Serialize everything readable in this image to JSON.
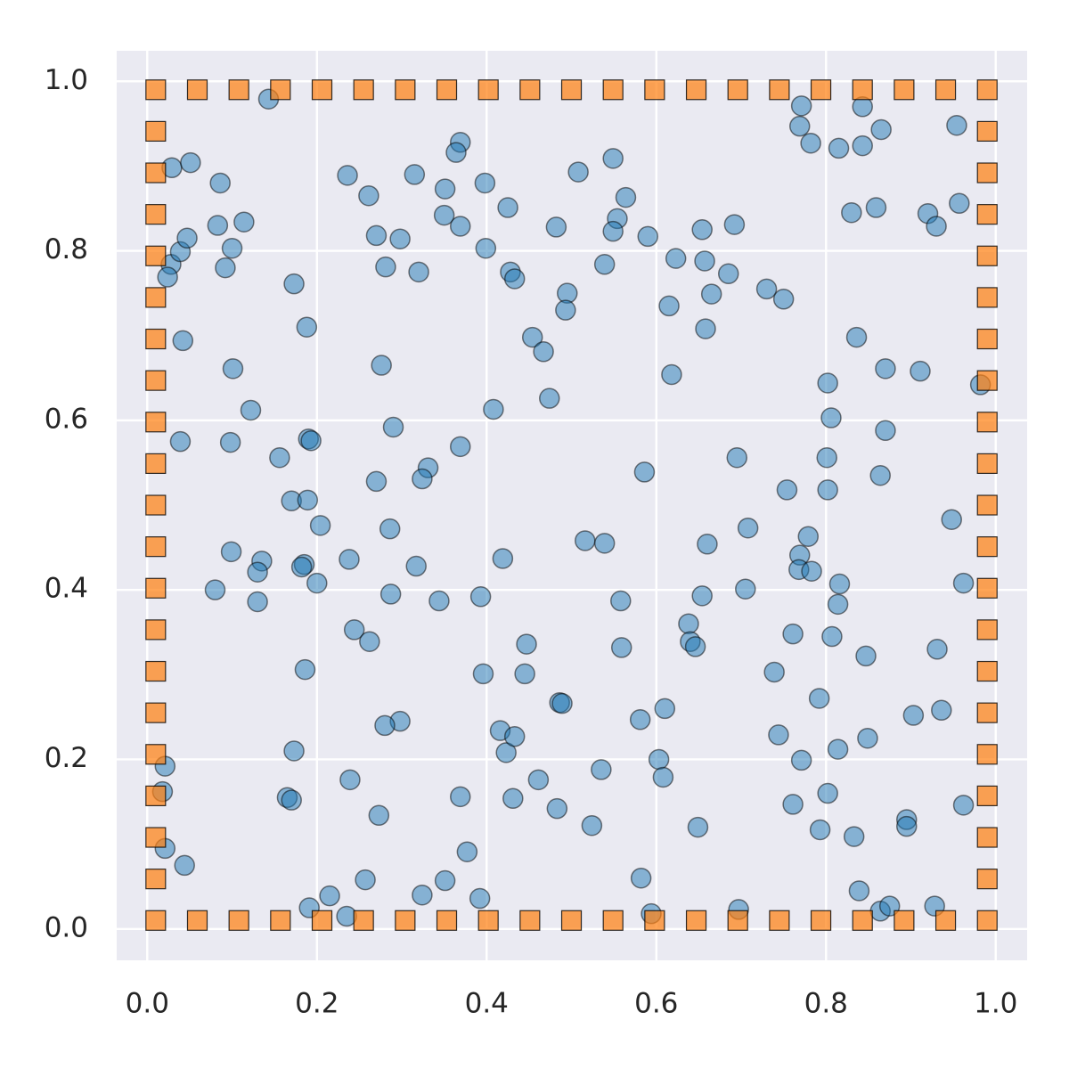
{
  "chart_data": {
    "type": "scatter",
    "xlim": [
      -0.036,
      1.037
    ],
    "ylim": [
      -0.037,
      1.036
    ],
    "xticks": [
      {
        "value": 0,
        "label": "0.0"
      },
      0.2,
      0.4,
      0.6,
      0.8,
      {
        "value": 1,
        "label": "1.0"
      }
    ],
    "yticks": [
      {
        "value": 0,
        "label": "0.0"
      },
      0.2,
      0.4,
      0.6,
      0.8,
      {
        "value": 1,
        "label": "1.0"
      }
    ],
    "grid": true,
    "series": [
      {
        "color": "#1f77b4",
        "marker": "circle",
        "x": [
          0.143,
          0.029,
          0.051,
          0.086,
          0.028,
          0.024,
          0.039,
          0.047,
          0.083,
          0.114,
          0.1,
          0.092,
          0.173,
          0.042,
          0.188,
          0.101,
          0.122,
          0.039,
          0.098,
          0.19,
          0.193,
          0.156,
          0.17,
          0.189,
          0.204,
          0.099,
          0.135,
          0.13,
          0.08,
          0.13,
          0.185,
          0.182,
          0.2,
          0.186,
          0.173,
          0.165,
          0.17,
          0.021,
          0.018,
          0.021,
          0.044,
          0.236,
          0.261,
          0.27,
          0.298,
          0.281,
          0.315,
          0.32,
          0.351,
          0.35,
          0.369,
          0.364,
          0.369,
          0.398,
          0.399,
          0.425,
          0.428,
          0.433,
          0.276,
          0.29,
          0.331,
          0.324,
          0.369,
          0.408,
          0.27,
          0.286,
          0.317,
          0.287,
          0.344,
          0.393,
          0.238,
          0.244,
          0.262,
          0.396,
          0.298,
          0.28,
          0.239,
          0.273,
          0.257,
          0.215,
          0.191,
          0.235,
          0.324,
          0.351,
          0.369,
          0.377,
          0.392,
          0.419,
          0.416,
          0.423,
          0.433,
          0.431,
          0.447,
          0.445,
          0.454,
          0.467,
          0.474,
          0.482,
          0.495,
          0.493,
          0.508,
          0.549,
          0.564,
          0.554,
          0.549,
          0.539,
          0.516,
          0.539,
          0.558,
          0.559,
          0.461,
          0.483,
          0.486,
          0.489,
          0.535,
          0.524,
          0.586,
          0.59,
          0.581,
          0.582,
          0.594,
          0.61,
          0.603,
          0.608,
          0.615,
          0.618,
          0.623,
          0.654,
          0.657,
          0.665,
          0.658,
          0.692,
          0.685,
          0.695,
          0.708,
          0.705,
          0.66,
          0.654,
          0.638,
          0.64,
          0.646,
          0.649,
          0.697,
          0.73,
          0.75,
          0.754,
          0.739,
          0.744,
          0.761,
          0.761,
          0.771,
          0.771,
          0.769,
          0.782,
          0.815,
          0.843,
          0.843,
          0.865,
          0.83,
          0.859,
          0.836,
          0.87,
          0.802,
          0.806,
          0.801,
          0.802,
          0.87,
          0.864,
          0.779,
          0.769,
          0.768,
          0.783,
          0.816,
          0.814,
          0.807,
          0.847,
          0.792,
          0.814,
          0.802,
          0.793,
          0.833,
          0.849,
          0.839,
          0.864,
          0.875,
          0.911,
          0.92,
          0.93,
          0.954,
          0.957,
          0.982,
          0.948,
          0.962,
          0.931,
          0.936,
          0.903,
          0.895,
          0.895,
          0.962,
          0.928
        ],
        "y": [
          0.979,
          0.898,
          0.904,
          0.88,
          0.784,
          0.769,
          0.799,
          0.815,
          0.83,
          0.834,
          0.803,
          0.78,
          0.761,
          0.694,
          0.71,
          0.661,
          0.612,
          0.575,
          0.574,
          0.578,
          0.576,
          0.556,
          0.505,
          0.506,
          0.476,
          0.445,
          0.434,
          0.421,
          0.4,
          0.386,
          0.43,
          0.427,
          0.408,
          0.306,
          0.21,
          0.155,
          0.152,
          0.192,
          0.162,
          0.095,
          0.075,
          0.889,
          0.865,
          0.818,
          0.814,
          0.781,
          0.89,
          0.775,
          0.873,
          0.842,
          0.928,
          0.916,
          0.829,
          0.88,
          0.803,
          0.851,
          0.775,
          0.767,
          0.665,
          0.592,
          0.544,
          0.531,
          0.569,
          0.613,
          0.528,
          0.472,
          0.428,
          0.395,
          0.387,
          0.392,
          0.436,
          0.353,
          0.339,
          0.301,
          0.245,
          0.24,
          0.176,
          0.134,
          0.058,
          0.039,
          0.025,
          0.015,
          0.04,
          0.057,
          0.156,
          0.091,
          0.036,
          0.437,
          0.234,
          0.208,
          0.227,
          0.154,
          0.336,
          0.301,
          0.698,
          0.681,
          0.626,
          0.828,
          0.75,
          0.73,
          0.893,
          0.909,
          0.863,
          0.838,
          0.823,
          0.784,
          0.458,
          0.455,
          0.387,
          0.332,
          0.176,
          0.142,
          0.267,
          0.266,
          0.188,
          0.122,
          0.539,
          0.817,
          0.247,
          0.06,
          0.018,
          0.26,
          0.2,
          0.179,
          0.735,
          0.654,
          0.791,
          0.825,
          0.788,
          0.749,
          0.708,
          0.831,
          0.773,
          0.556,
          0.473,
          0.401,
          0.454,
          0.393,
          0.36,
          0.339,
          0.333,
          0.12,
          0.023,
          0.755,
          0.743,
          0.518,
          0.303,
          0.229,
          0.348,
          0.147,
          0.199,
          0.971,
          0.947,
          0.927,
          0.921,
          0.924,
          0.97,
          0.943,
          0.845,
          0.851,
          0.698,
          0.661,
          0.644,
          0.603,
          0.556,
          0.518,
          0.588,
          0.535,
          0.463,
          0.441,
          0.424,
          0.422,
          0.407,
          0.383,
          0.345,
          0.322,
          0.272,
          0.212,
          0.16,
          0.117,
          0.109,
          0.225,
          0.045,
          0.021,
          0.027,
          0.658,
          0.844,
          0.829,
          0.948,
          0.856,
          0.642,
          0.483,
          0.408,
          0.33,
          0.258,
          0.252,
          0.129,
          0.121,
          0.146,
          0.027
        ]
      },
      {
        "color": "#ff7f0e",
        "marker": "square",
        "x": [
          0.01,
          0.059,
          0.108,
          0.157,
          0.206,
          0.255,
          0.304,
          0.353,
          0.402,
          0.451,
          0.5,
          0.549,
          0.598,
          0.647,
          0.696,
          0.745,
          0.794,
          0.843,
          0.892,
          0.941,
          0.99,
          0.01,
          0.059,
          0.108,
          0.157,
          0.206,
          0.255,
          0.304,
          0.353,
          0.402,
          0.451,
          0.5,
          0.549,
          0.598,
          0.647,
          0.696,
          0.745,
          0.794,
          0.843,
          0.892,
          0.941,
          0.99,
          0.01,
          0.01,
          0.01,
          0.01,
          0.01,
          0.01,
          0.01,
          0.01,
          0.01,
          0.01,
          0.01,
          0.01,
          0.01,
          0.01,
          0.01,
          0.01,
          0.01,
          0.01,
          0.01,
          0.99,
          0.99,
          0.99,
          0.99,
          0.99,
          0.99,
          0.99,
          0.99,
          0.99,
          0.99,
          0.99,
          0.99,
          0.99,
          0.99,
          0.99,
          0.99,
          0.99,
          0.99,
          0.99
        ],
        "y": [
          0.01,
          0.01,
          0.01,
          0.01,
          0.01,
          0.01,
          0.01,
          0.01,
          0.01,
          0.01,
          0.01,
          0.01,
          0.01,
          0.01,
          0.01,
          0.01,
          0.01,
          0.01,
          0.01,
          0.01,
          0.01,
          0.99,
          0.99,
          0.99,
          0.99,
          0.99,
          0.99,
          0.99,
          0.99,
          0.99,
          0.99,
          0.99,
          0.99,
          0.99,
          0.99,
          0.99,
          0.99,
          0.99,
          0.99,
          0.99,
          0.99,
          0.99,
          0.059,
          0.108,
          0.157,
          0.206,
          0.255,
          0.304,
          0.353,
          0.402,
          0.451,
          0.5,
          0.549,
          0.598,
          0.647,
          0.696,
          0.745,
          0.794,
          0.843,
          0.892,
          0.941,
          0.059,
          0.108,
          0.157,
          0.206,
          0.255,
          0.304,
          0.353,
          0.402,
          0.451,
          0.5,
          0.549,
          0.598,
          0.647,
          0.696,
          0.745,
          0.794,
          0.843,
          0.892,
          0.941
        ]
      }
    ]
  }
}
